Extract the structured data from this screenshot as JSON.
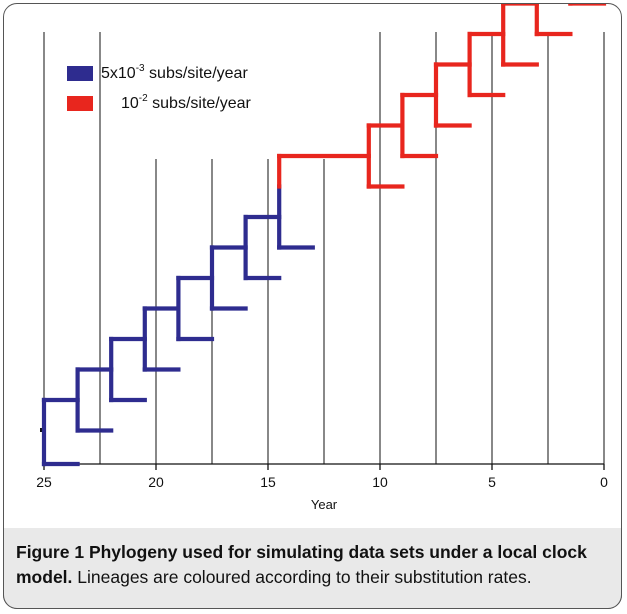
{
  "chart_data": {
    "type": "line",
    "xlabel": "Year",
    "x_ticks": [
      25,
      20,
      15,
      10,
      5,
      0
    ],
    "xlim": [
      25,
      0
    ],
    "year_lines": [
      25,
      22.5,
      20,
      17.5,
      15,
      12.5,
      10,
      7.5,
      5,
      2.5,
      0
    ],
    "legend": [
      {
        "color": "#2e2c8f",
        "base": "5x10",
        "sup": "-3",
        "unit": " subs/site/year"
      },
      {
        "color": "#e8261e",
        "base": "10",
        "sup": "-2",
        "unit": " subs/site/year"
      }
    ],
    "rates": {
      "blue": "5x10^-3 subs/site/year",
      "red": "10^-2 subs/site/year"
    },
    "colors": {
      "blue": "#2e2c8f",
      "red": "#e8261e"
    },
    "tree": {
      "blue_nodes": [
        {
          "node": 25.0,
          "tip": 23.5
        },
        {
          "node": 23.5,
          "tip": 22.0
        },
        {
          "node": 22.0,
          "tip": 20.5
        },
        {
          "node": 20.5,
          "tip": 19.0
        },
        {
          "node": 19.0,
          "tip": 17.5
        },
        {
          "node": 17.5,
          "tip": 16.0
        },
        {
          "node": 16.0,
          "tip": 14.5
        },
        {
          "node": 14.5,
          "tip": 13.0
        }
      ],
      "rate_shift_node": 14.5,
      "red_branch_end": 10.5,
      "red_nodes": [
        {
          "node": 10.5,
          "tip": 9.0
        },
        {
          "node": 9.0,
          "tip": 7.5
        },
        {
          "node": 7.5,
          "tip": 6.0
        },
        {
          "node": 6.0,
          "tip": 4.5
        },
        {
          "node": 4.5,
          "tip": 3.0
        },
        {
          "node": 3.0,
          "tip": 1.5
        },
        {
          "node": 1.5,
          "tip": 0.0
        },
        {
          "node": 1.5,
          "tip": 0.0
        }
      ]
    }
  },
  "caption": {
    "label": "Figure 1",
    "title": " Phylogeny used for simulating data sets under a local clock model.",
    "body": " Lineages are coloured according to their substitution rates."
  }
}
